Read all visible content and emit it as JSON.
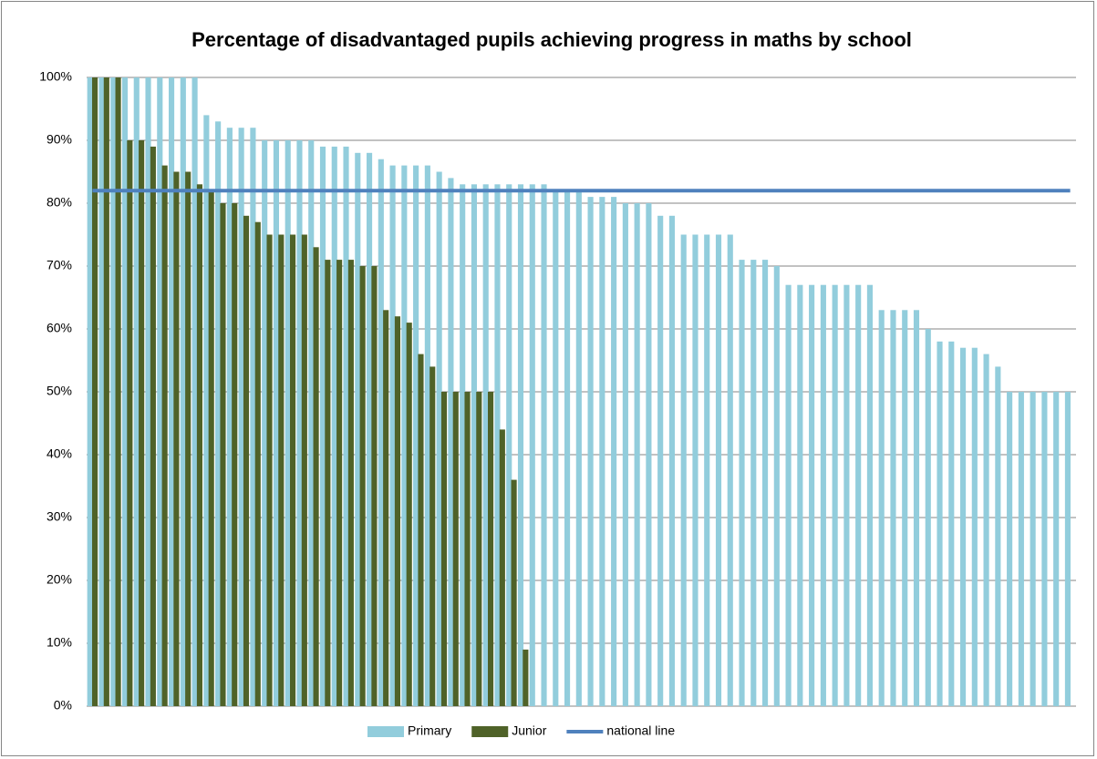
{
  "chart_data": {
    "type": "bar",
    "title": "Percentage of disadvantaged pupils achieving progress in maths by school",
    "categories": [
      null,
      null,
      null,
      null,
      null,
      null,
      null,
      null,
      null,
      null,
      null,
      null,
      null,
      null,
      null,
      null,
      null,
      null,
      null,
      null,
      null,
      null,
      null,
      null,
      null,
      null,
      null,
      null,
      null,
      null,
      null,
      null,
      null,
      null,
      null,
      null,
      null,
      null,
      null,
      null,
      null,
      null,
      null,
      null,
      null,
      null,
      null,
      null,
      null,
      null,
      null,
      null,
      null,
      null,
      null,
      null,
      null,
      null,
      null,
      null,
      null,
      null,
      null,
      null,
      null,
      null,
      null,
      null,
      null,
      null,
      null,
      null,
      null,
      null,
      null,
      null,
      null,
      null,
      null,
      null,
      null,
      null,
      null,
      null,
      null
    ],
    "series": [
      {
        "name": "Primary",
        "type": "bar",
        "color": "#92cddc",
        "values": [
          100,
          100,
          100,
          100,
          100,
          100,
          100,
          100,
          100,
          100,
          94,
          93,
          92,
          92,
          92,
          90,
          90,
          90,
          90,
          90,
          89,
          89,
          89,
          88,
          88,
          87,
          86,
          86,
          86,
          86,
          85,
          84,
          83,
          83,
          83,
          83,
          83,
          83,
          83,
          83,
          82,
          82,
          82,
          81,
          81,
          81,
          80,
          80,
          80,
          78,
          78,
          75,
          75,
          75,
          75,
          75,
          71,
          71,
          71,
          70,
          67,
          67,
          67,
          67,
          67,
          67,
          67,
          67,
          63,
          63,
          63,
          63,
          60,
          58,
          58,
          57,
          57,
          56,
          54,
          50,
          50,
          50,
          50,
          50,
          50
        ]
      },
      {
        "name": "Junior",
        "type": "bar",
        "color": "#4f6228",
        "values": [
          100,
          100,
          100,
          90,
          90,
          89,
          86,
          85,
          85,
          83,
          82,
          80,
          80,
          78,
          77,
          75,
          75,
          75,
          75,
          73,
          71,
          71,
          71,
          70,
          70,
          63,
          62,
          61,
          56,
          54,
          50,
          50,
          50,
          50,
          50,
          44,
          36,
          9,
          null,
          null,
          null,
          null,
          null,
          null,
          null,
          null,
          null,
          null,
          null,
          null,
          null,
          null,
          null,
          null,
          null,
          null,
          null,
          null,
          null,
          null,
          null,
          null,
          null,
          null,
          null,
          null,
          null,
          null,
          null,
          null,
          null,
          null,
          null,
          null,
          null,
          null,
          null,
          null,
          null,
          null,
          null,
          null,
          null,
          null,
          null
        ]
      },
      {
        "name": "national line",
        "type": "line",
        "color": "#4f81bd",
        "values": [
          82,
          82,
          82,
          82,
          82,
          82,
          82,
          82,
          82,
          82,
          82,
          82,
          82,
          82,
          82,
          82,
          82,
          82,
          82,
          82,
          82,
          82,
          82,
          82,
          82,
          82,
          82,
          82,
          82,
          82,
          82,
          82,
          82,
          82,
          82,
          82,
          82,
          82,
          82,
          82,
          82,
          82,
          82,
          82,
          82,
          82,
          82,
          82,
          82,
          82,
          82,
          82,
          82,
          82,
          82,
          82,
          82,
          82,
          82,
          82,
          82,
          82,
          82,
          82,
          82,
          82,
          82,
          82,
          82,
          82,
          82,
          82,
          82,
          82,
          82,
          82,
          82,
          82,
          82,
          82,
          82,
          82,
          82,
          82,
          82
        ]
      }
    ],
    "ylim": [
      0,
      100
    ],
    "yticks": [
      {
        "value": 0,
        "label": "0%"
      },
      {
        "value": 10,
        "label": "10%"
      },
      {
        "value": 20,
        "label": "20%"
      },
      {
        "value": 30,
        "label": "30%"
      },
      {
        "value": 40,
        "label": "40%"
      },
      {
        "value": 50,
        "label": "50%"
      },
      {
        "value": 60,
        "label": "60%"
      },
      {
        "value": 70,
        "label": "70%"
      },
      {
        "value": 80,
        "label": "80%"
      },
      {
        "value": 90,
        "label": "90%"
      },
      {
        "value": 100,
        "label": "100%"
      }
    ],
    "grid": true,
    "legend": "bottom"
  }
}
